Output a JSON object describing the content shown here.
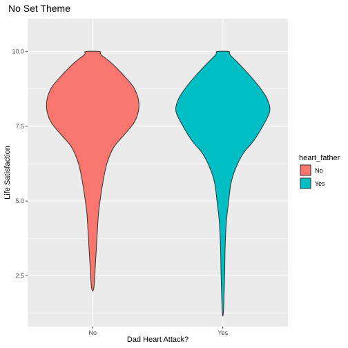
{
  "chart_data": {
    "type": "violin",
    "title": "No Set Theme",
    "xlabel": "Dad Heart Attack?",
    "ylabel": "Life Satisfaction",
    "categories": [
      "No",
      "Yes"
    ],
    "ylim": [
      0.8,
      11.1
    ],
    "yticks": [
      2.5,
      5.0,
      7.5,
      10.0
    ],
    "ytick_labels": [
      "2.5",
      "5.0",
      "7.5",
      "10.0"
    ],
    "legend": {
      "title": "heart_father",
      "position": "right",
      "entries": [
        "No",
        "Yes"
      ]
    },
    "colors": {
      "No": "#F8766D",
      "Yes": "#00BFC4",
      "panel": "#EBEBEB",
      "grid": "#FFFFFF"
    },
    "series": [
      {
        "name": "No",
        "min": 2.1,
        "max": 10.0,
        "profile": [
          [
            2.1,
            0.02
          ],
          [
            3.0,
            0.05
          ],
          [
            4.0,
            0.08
          ],
          [
            4.6,
            0.1
          ],
          [
            5.2,
            0.14
          ],
          [
            5.8,
            0.19
          ],
          [
            6.3,
            0.25
          ],
          [
            6.8,
            0.36
          ],
          [
            7.2,
            0.53
          ],
          [
            7.6,
            0.7
          ],
          [
            8.0,
            0.78
          ],
          [
            8.4,
            0.78
          ],
          [
            8.8,
            0.7
          ],
          [
            9.2,
            0.53
          ],
          [
            9.6,
            0.33
          ],
          [
            9.9,
            0.14
          ],
          [
            10.0,
            0.12
          ]
        ]
      },
      {
        "name": "Yes",
        "min": 1.3,
        "max": 10.0,
        "profile": [
          [
            1.3,
            0.01
          ],
          [
            2.5,
            0.03
          ],
          [
            3.5,
            0.04
          ],
          [
            4.3,
            0.06
          ],
          [
            5.0,
            0.1
          ],
          [
            5.6,
            0.14
          ],
          [
            6.1,
            0.22
          ],
          [
            6.6,
            0.35
          ],
          [
            7.0,
            0.52
          ],
          [
            7.5,
            0.68
          ],
          [
            8.0,
            0.8
          ],
          [
            8.4,
            0.76
          ],
          [
            8.8,
            0.63
          ],
          [
            9.2,
            0.46
          ],
          [
            9.6,
            0.27
          ],
          [
            9.9,
            0.12
          ],
          [
            10.0,
            0.1
          ]
        ]
      }
    ]
  }
}
